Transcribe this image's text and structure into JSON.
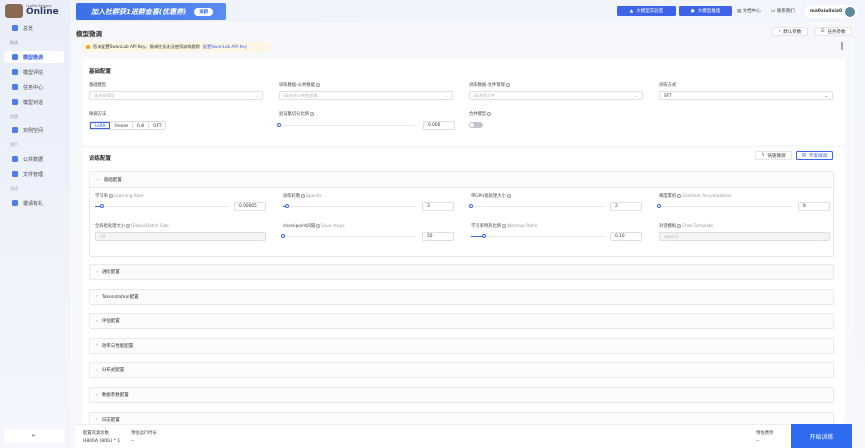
{
  "brand": {
    "small": "LLaMA-Factory",
    "big": "Online"
  },
  "sidebar": {
    "overview": "总览",
    "sections": [
      "微调",
      "实例",
      "资产",
      "活动"
    ],
    "items": [
      "模型微调",
      "模型评估",
      "任务中心",
      "模型对话",
      "实例空间",
      "公共数据",
      "文件管理",
      "邀请有礼"
    ],
    "collapse": "⇤"
  },
  "header": {
    "banner_text": "加入社群获1进群金喜(优惠券)",
    "banner_button": "进群",
    "lab_button": "大模型实验室",
    "infer_button": "大模型推理",
    "docs": "文档中心",
    "contact": "联系我们",
    "username": "ma0xia0xia0"
  },
  "page": {
    "title": "模型微调",
    "default_params": "默认参数",
    "task_params": "任务参数",
    "warning": "您未配置SwanLab API Key，微调任务无法使用训练跟踪",
    "warning_link": "配置SwanLab API Key"
  },
  "basic": {
    "title": "基础配置",
    "base_model_label": "基础模型",
    "base_model_placeholder": "请选择模型",
    "public_data_label": "训练数据-公共数据",
    "public_data_placeholder": "请选择公共数据集",
    "file_data_label": "训练数据-文件管理",
    "file_data_placeholder": "请选择文件",
    "method_label": "训练方式",
    "method_value": "SFT",
    "finetune_label": "微调方法",
    "finetune_options": [
      "LoRA",
      "Freeze",
      "Full",
      "OFT"
    ],
    "finetune_selected": "LoRA",
    "val_split_label": "验证集切分比例",
    "val_split_value": "0.000",
    "val_split_fraction": 0,
    "merge_label": "合并模型",
    "merge_on": false
  },
  "training": {
    "title": "训练配置",
    "quick": "快速微调",
    "expert": "专家微调",
    "basic_section": "基础配置",
    "fields": [
      {
        "label": "学习率",
        "en": "Learning Rate",
        "value": "0.00005",
        "fraction": 0.05
      },
      {
        "label": "训练轮数",
        "en": "Epochs",
        "value": "3",
        "fraction": 0.03
      },
      {
        "label": "单GPU批处理大小",
        "en": "",
        "value": "2",
        "fraction": 0
      },
      {
        "label": "梯度累积",
        "en": "Gradient Accumulation",
        "value": "8",
        "fraction": 0
      },
      {
        "label": "全局批处理大小",
        "en": "Global Batch Size",
        "value": "16",
        "disabled": true
      },
      {
        "label": "checkpoint间隔",
        "en": "Save steps",
        "value": "50",
        "fraction": 0
      },
      {
        "label": "学习率预热比例",
        "en": "Warmup Ratio",
        "value": "0.10",
        "fraction": 0.1
      },
      {
        "label": "对话模板",
        "en": "Chat Template",
        "value": "qwen3",
        "disabled": true
      }
    ],
    "sections": [
      "进阶配置",
      "Tokenization配置",
      "评估配置",
      "效率与性能配置",
      "分布式配置",
      "数据参数配置",
      "日志配置"
    ]
  },
  "footer": {
    "resource_label": "配置资源总数",
    "resource_value": "H800A (80G) * 1",
    "duration_label": "预估运行时长",
    "duration_value": "--",
    "cost_label": "预估费用",
    "cost_value": "--",
    "start": "开始训练"
  }
}
